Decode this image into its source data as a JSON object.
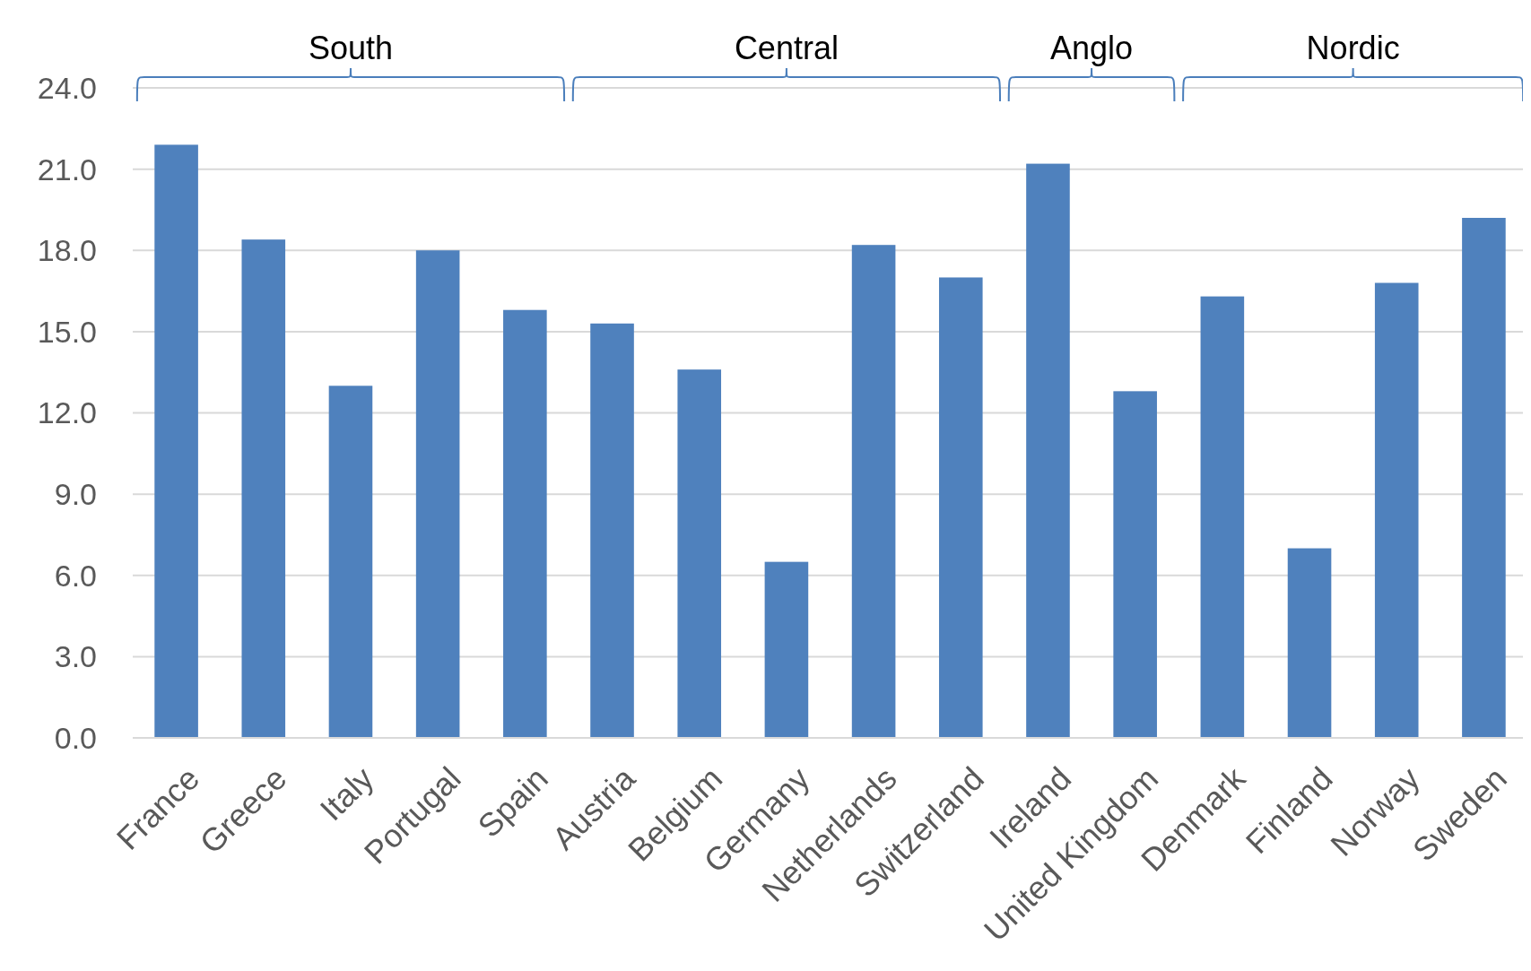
{
  "chart_data": {
    "type": "bar",
    "categories": [
      "France",
      "Greece",
      "Italy",
      "Portugal",
      "Spain",
      "Austria",
      "Belgium",
      "Germany",
      "Netherlands",
      "Switzerland",
      "Ireland",
      "United Kingdom",
      "Denmark",
      "Finland",
      "Norway",
      "Sweden"
    ],
    "values": [
      21.9,
      18.4,
      13.0,
      18.0,
      15.8,
      15.3,
      13.6,
      6.5,
      18.2,
      17.0,
      21.2,
      12.8,
      16.3,
      7.0,
      16.8,
      19.2
    ],
    "color": "#4f81bd",
    "ylim": [
      0,
      24
    ],
    "yticks": [
      {
        "value": 0,
        "label": "0.0"
      },
      {
        "value": 3,
        "label": "3.0"
      },
      {
        "value": 6,
        "label": "6.0"
      },
      {
        "value": 9,
        "label": "9.0"
      },
      {
        "value": 12,
        "label": "12.0"
      },
      {
        "value": 15,
        "label": "15.0"
      },
      {
        "value": 18,
        "label": "18.0"
      },
      {
        "value": 21,
        "label": "21.0"
      },
      {
        "value": 24,
        "label": "24.0"
      }
    ],
    "grid": "y",
    "annotations": [
      "South",
      "Central",
      "Anglo",
      "Nordic"
    ]
  }
}
